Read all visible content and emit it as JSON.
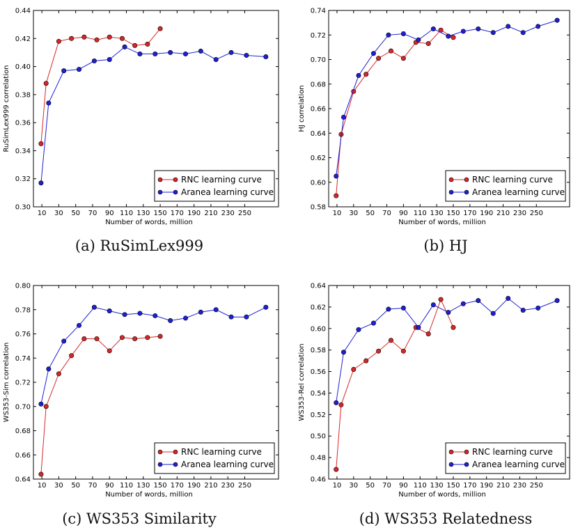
{
  "chart_data": [
    {
      "type": "line",
      "caption": "(a) RuSimLex999",
      "xlabel": "Number of words, million",
      "ylabel": "RuSimLex999 correlation",
      "xticks": [
        10,
        30,
        50,
        70,
        90,
        110,
        130,
        150,
        170,
        190,
        210,
        230,
        250
      ],
      "xlim": [
        0,
        290
      ],
      "yticks": [
        0.3,
        0.32,
        0.34,
        0.36,
        0.38,
        0.4,
        0.42,
        0.44
      ],
      "ylim": [
        0.3,
        0.44
      ],
      "grid": false,
      "legend_position": "bottom-right",
      "series": [
        {
          "name": "RNC learning curve",
          "color": "#d62728",
          "x": [
            9,
            15,
            30,
            45,
            60,
            75,
            90,
            105,
            120,
            135,
            150
          ],
          "y": [
            0.345,
            0.388,
            0.418,
            0.42,
            0.421,
            0.419,
            0.421,
            0.42,
            0.415,
            0.416,
            0.427
          ]
        },
        {
          "name": "Aranea learning curve",
          "color": "#1f1fd6",
          "x": [
            9,
            18,
            36,
            54,
            72,
            90,
            108,
            126,
            144,
            162,
            180,
            198,
            216,
            234,
            252,
            275
          ],
          "y": [
            0.317,
            0.374,
            0.397,
            0.398,
            0.404,
            0.405,
            0.414,
            0.409,
            0.409,
            0.41,
            0.409,
            0.411,
            0.405,
            0.41,
            0.408,
            0.407
          ]
        }
      ]
    },
    {
      "type": "line",
      "caption": "(b) HJ",
      "xlabel": "Number of words, million",
      "ylabel": "HJ correlation",
      "xticks": [
        10,
        30,
        50,
        70,
        90,
        110,
        130,
        150,
        170,
        190,
        210,
        230,
        250
      ],
      "xlim": [
        0,
        290
      ],
      "yticks": [
        0.58,
        0.6,
        0.62,
        0.64,
        0.66,
        0.68,
        0.7,
        0.72,
        0.74
      ],
      "ylim": [
        0.58,
        0.74
      ],
      "grid": false,
      "legend_position": "bottom-right",
      "series": [
        {
          "name": "RNC learning curve",
          "color": "#d62728",
          "x": [
            9,
            15,
            30,
            45,
            60,
            75,
            90,
            105,
            120,
            135,
            150
          ],
          "y": [
            0.589,
            0.639,
            0.674,
            0.688,
            0.701,
            0.707,
            0.701,
            0.714,
            0.713,
            0.724,
            0.718
          ]
        },
        {
          "name": "Aranea learning curve",
          "color": "#1f1fd6",
          "x": [
            9,
            18,
            36,
            54,
            72,
            90,
            108,
            126,
            144,
            162,
            180,
            198,
            216,
            234,
            252,
            275
          ],
          "y": [
            0.605,
            0.653,
            0.687,
            0.705,
            0.72,
            0.721,
            0.716,
            0.725,
            0.719,
            0.723,
            0.725,
            0.722,
            0.727,
            0.722,
            0.727,
            0.732
          ]
        }
      ]
    },
    {
      "type": "line",
      "caption": "(c) WS353 Similarity",
      "xlabel": "Number of words, million",
      "ylabel": "WS353-Sim correlation",
      "xticks": [
        10,
        30,
        50,
        70,
        90,
        110,
        130,
        150,
        170,
        190,
        210,
        230,
        250
      ],
      "xlim": [
        0,
        290
      ],
      "yticks": [
        0.64,
        0.66,
        0.68,
        0.7,
        0.72,
        0.74,
        0.76,
        0.78,
        0.8
      ],
      "ylim": [
        0.64,
        0.8
      ],
      "grid": false,
      "legend_position": "bottom-right",
      "series": [
        {
          "name": "RNC learning curve",
          "color": "#d62728",
          "x": [
            9,
            15,
            30,
            45,
            60,
            75,
            90,
            105,
            120,
            135,
            150
          ],
          "y": [
            0.644,
            0.7,
            0.727,
            0.742,
            0.756,
            0.756,
            0.746,
            0.757,
            0.756,
            0.757,
            0.758
          ]
        },
        {
          "name": "Aranea learning curve",
          "color": "#1f1fd6",
          "x": [
            9,
            18,
            36,
            54,
            72,
            90,
            108,
            126,
            144,
            162,
            180,
            198,
            216,
            234,
            252,
            275
          ],
          "y": [
            0.702,
            0.731,
            0.754,
            0.767,
            0.782,
            0.779,
            0.776,
            0.777,
            0.775,
            0.771,
            0.773,
            0.778,
            0.78,
            0.774,
            0.774,
            0.782
          ]
        }
      ]
    },
    {
      "type": "line",
      "caption": "(d) WS353 Relatedness",
      "xlabel": "Number of words, million",
      "ylabel": "WS353-Rel correlation",
      "xticks": [
        10,
        30,
        50,
        70,
        90,
        110,
        130,
        150,
        170,
        190,
        210,
        230,
        250
      ],
      "xlim": [
        0,
        290
      ],
      "yticks": [
        0.46,
        0.48,
        0.5,
        0.52,
        0.54,
        0.56,
        0.58,
        0.6,
        0.62,
        0.64
      ],
      "ylim": [
        0.46,
        0.64
      ],
      "grid": false,
      "legend_position": "bottom-right",
      "series": [
        {
          "name": "RNC learning curve",
          "color": "#d62728",
          "x": [
            9,
            15,
            30,
            45,
            60,
            75,
            90,
            105,
            120,
            135,
            150
          ],
          "y": [
            0.469,
            0.529,
            0.562,
            0.57,
            0.579,
            0.589,
            0.579,
            0.601,
            0.595,
            0.627,
            0.601
          ]
        },
        {
          "name": "Aranea learning curve",
          "color": "#1f1fd6",
          "x": [
            9,
            18,
            36,
            54,
            72,
            90,
            108,
            126,
            144,
            162,
            180,
            198,
            216,
            234,
            252,
            275
          ],
          "y": [
            0.531,
            0.578,
            0.599,
            0.605,
            0.618,
            0.619,
            0.601,
            0.622,
            0.615,
            0.623,
            0.626,
            0.614,
            0.628,
            0.617,
            0.619,
            0.626
          ]
        }
      ]
    }
  ]
}
